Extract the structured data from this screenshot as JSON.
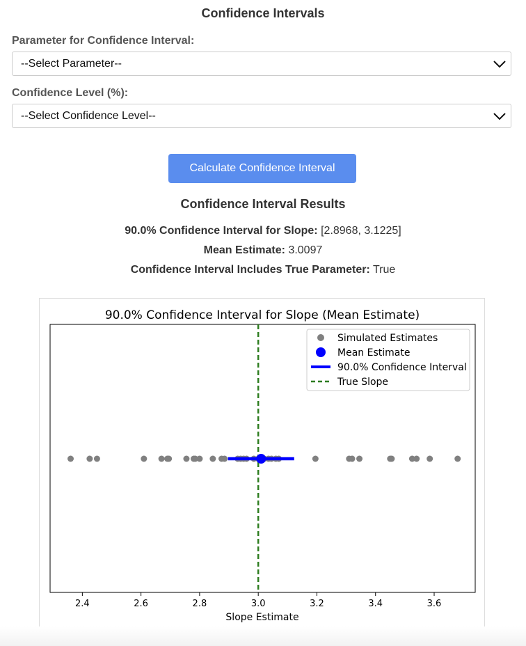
{
  "page": {
    "title": "Confidence Intervals"
  },
  "form": {
    "parameter_label": "Parameter for Confidence Interval:",
    "parameter_selected": "--Select Parameter--",
    "confidence_label": "Confidence Level (%):",
    "confidence_selected": "--Select Confidence Level--",
    "calculate_label": "Calculate Confidence Interval"
  },
  "results": {
    "title": "Confidence Interval Results",
    "interval_label": "90.0% Confidence Interval for Slope:",
    "interval_value": "[2.8968, 3.1225]",
    "mean_label": "Mean Estimate:",
    "mean_value": "3.0097",
    "includes_label": "Confidence Interval Includes True Parameter:",
    "includes_value": "True"
  },
  "colors": {
    "button": "#5a8dee",
    "simulated": "#808080",
    "mean": "#0000ff",
    "true_slope": "#2e7d20"
  },
  "chart_data": {
    "type": "scatter",
    "title": "90.0% Confidence Interval for Slope (Mean Estimate)",
    "xlabel": "Slope Estimate",
    "ylabel": "",
    "xlim": [
      2.29,
      3.74
    ],
    "xticks": [
      "2.4",
      "2.6",
      "2.8",
      "3.0",
      "3.2",
      "3.4",
      "3.6"
    ],
    "grid": false,
    "legend_position": "top-right",
    "series": [
      {
        "name": "Simulated Estimates",
        "x": [
          2.36,
          2.425,
          2.45,
          2.61,
          2.67,
          2.69,
          2.695,
          2.755,
          2.78,
          2.785,
          2.8,
          2.845,
          2.875,
          2.885,
          2.93,
          2.94,
          2.95,
          2.96,
          2.985,
          3.0,
          3.01,
          3.02,
          3.035,
          3.045,
          3.06,
          3.07,
          3.195,
          3.31,
          3.32,
          3.345,
          3.45,
          3.455,
          3.525,
          3.54,
          3.585,
          3.68
        ]
      },
      {
        "name": "Mean Estimate",
        "x": [
          3.0097
        ]
      },
      {
        "name": "90.0% Confidence Interval",
        "range": [
          2.8968,
          3.1225
        ]
      },
      {
        "name": "True Slope",
        "x": [
          3.0
        ]
      }
    ]
  }
}
